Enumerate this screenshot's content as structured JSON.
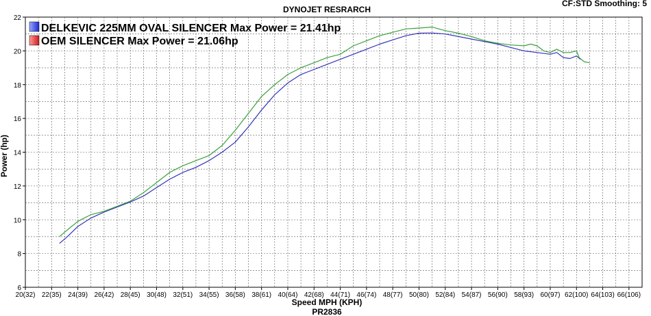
{
  "chart_data": {
    "type": "line",
    "title": "DYNOJET RESRARCH",
    "info": "CF:STD Smoothing: 5",
    "footer": "PR2836",
    "xlabel": "Speed MPH (KPH)",
    "ylabel": "Power (hp)",
    "xlim": [
      20,
      67
    ],
    "ylim": [
      6,
      22
    ],
    "grid": true,
    "legend_position": "top-left",
    "x_ticks": [
      {
        "value": 20,
        "label": "20(32)"
      },
      {
        "value": 22,
        "label": "22(35)"
      },
      {
        "value": 24,
        "label": "24(39)"
      },
      {
        "value": 26,
        "label": "26(42)"
      },
      {
        "value": 28,
        "label": "28(45)"
      },
      {
        "value": 30,
        "label": "30(48)"
      },
      {
        "value": 32,
        "label": "32(51)"
      },
      {
        "value": 34,
        "label": "34(55)"
      },
      {
        "value": 36,
        "label": "36(58)"
      },
      {
        "value": 38,
        "label": "38(61)"
      },
      {
        "value": 40,
        "label": "40(64)"
      },
      {
        "value": 42,
        "label": "42(68)"
      },
      {
        "value": 44,
        "label": "44(71)"
      },
      {
        "value": 46,
        "label": "46(74)"
      },
      {
        "value": 48,
        "label": "48(77)"
      },
      {
        "value": 50,
        "label": "50(80)"
      },
      {
        "value": 52,
        "label": "52(84)"
      },
      {
        "value": 54,
        "label": "54(87)"
      },
      {
        "value": 56,
        "label": "56(90)"
      },
      {
        "value": 58,
        "label": "58(93)"
      },
      {
        "value": 60,
        "label": "60(97)"
      },
      {
        "value": 62,
        "label": "62(100)"
      },
      {
        "value": 64,
        "label": "64(103)"
      },
      {
        "value": 66,
        "label": "66(106)"
      }
    ],
    "y_ticks": [
      6,
      8,
      10,
      12,
      14,
      16,
      18,
      20,
      22
    ],
    "series": [
      {
        "name": "DELKEVIC 225MM OVAL SILENCER Max Power = 21.41hp",
        "color": "#3aa03a",
        "legend_color": "#2233dd",
        "points": [
          [
            22.6,
            9.0
          ],
          [
            23.2,
            9.4
          ],
          [
            24.0,
            9.9
          ],
          [
            25.0,
            10.3
          ],
          [
            26.0,
            10.5
          ],
          [
            27.0,
            10.8
          ],
          [
            28.0,
            11.1
          ],
          [
            29.0,
            11.6
          ],
          [
            30.0,
            12.2
          ],
          [
            31.0,
            12.8
          ],
          [
            32.0,
            13.2
          ],
          [
            33.0,
            13.5
          ],
          [
            34.0,
            13.8
          ],
          [
            35.0,
            14.4
          ],
          [
            36.0,
            15.3
          ],
          [
            37.0,
            16.3
          ],
          [
            38.0,
            17.3
          ],
          [
            39.0,
            18.0
          ],
          [
            40.0,
            18.6
          ],
          [
            41.0,
            19.0
          ],
          [
            42.0,
            19.3
          ],
          [
            43.0,
            19.6
          ],
          [
            44.0,
            19.8
          ],
          [
            45.0,
            20.3
          ],
          [
            46.0,
            20.6
          ],
          [
            47.0,
            20.9
          ],
          [
            48.0,
            21.1
          ],
          [
            49.0,
            21.3
          ],
          [
            50.0,
            21.35
          ],
          [
            51.0,
            21.41
          ],
          [
            52.0,
            21.2
          ],
          [
            53.0,
            21.05
          ],
          [
            54.0,
            20.85
          ],
          [
            55.0,
            20.6
          ],
          [
            56.0,
            20.45
          ],
          [
            57.0,
            20.35
          ],
          [
            58.0,
            20.3
          ],
          [
            58.5,
            20.4
          ],
          [
            59.0,
            20.3
          ],
          [
            59.5,
            20.0
          ],
          [
            60.0,
            19.9
          ],
          [
            60.5,
            20.1
          ],
          [
            61.0,
            19.9
          ],
          [
            61.5,
            19.9
          ],
          [
            62.0,
            20.0
          ],
          [
            62.2,
            19.6
          ],
          [
            62.6,
            19.35
          ],
          [
            63.0,
            19.3
          ]
        ]
      },
      {
        "name": "OEM SILENCER Max Power = 21.06hp",
        "color": "#3333bb",
        "legend_color": "#dd2222",
        "points": [
          [
            22.6,
            8.6
          ],
          [
            23.2,
            9.0
          ],
          [
            24.0,
            9.6
          ],
          [
            25.0,
            10.1
          ],
          [
            26.0,
            10.45
          ],
          [
            27.0,
            10.75
          ],
          [
            28.0,
            11.05
          ],
          [
            29.0,
            11.4
          ],
          [
            30.0,
            11.9
          ],
          [
            31.0,
            12.4
          ],
          [
            32.0,
            12.8
          ],
          [
            33.0,
            13.1
          ],
          [
            34.0,
            13.5
          ],
          [
            35.0,
            14.0
          ],
          [
            36.0,
            14.6
          ],
          [
            37.0,
            15.5
          ],
          [
            38.0,
            16.5
          ],
          [
            39.0,
            17.4
          ],
          [
            40.0,
            18.1
          ],
          [
            41.0,
            18.6
          ],
          [
            42.0,
            18.9
          ],
          [
            43.0,
            19.2
          ],
          [
            44.0,
            19.5
          ],
          [
            45.0,
            19.8
          ],
          [
            46.0,
            20.1
          ],
          [
            47.0,
            20.4
          ],
          [
            48.0,
            20.65
          ],
          [
            49.0,
            20.9
          ],
          [
            50.0,
            21.05
          ],
          [
            51.0,
            21.06
          ],
          [
            52.0,
            21.0
          ],
          [
            53.0,
            20.85
          ],
          [
            54.0,
            20.7
          ],
          [
            55.0,
            20.55
          ],
          [
            56.0,
            20.4
          ],
          [
            57.0,
            20.2
          ],
          [
            58.0,
            20.0
          ],
          [
            59.0,
            19.9
          ],
          [
            60.0,
            19.8
          ],
          [
            60.5,
            19.9
          ],
          [
            61.0,
            19.6
          ],
          [
            61.5,
            19.55
          ],
          [
            62.0,
            19.7
          ],
          [
            62.3,
            19.5
          ]
        ]
      }
    ]
  }
}
